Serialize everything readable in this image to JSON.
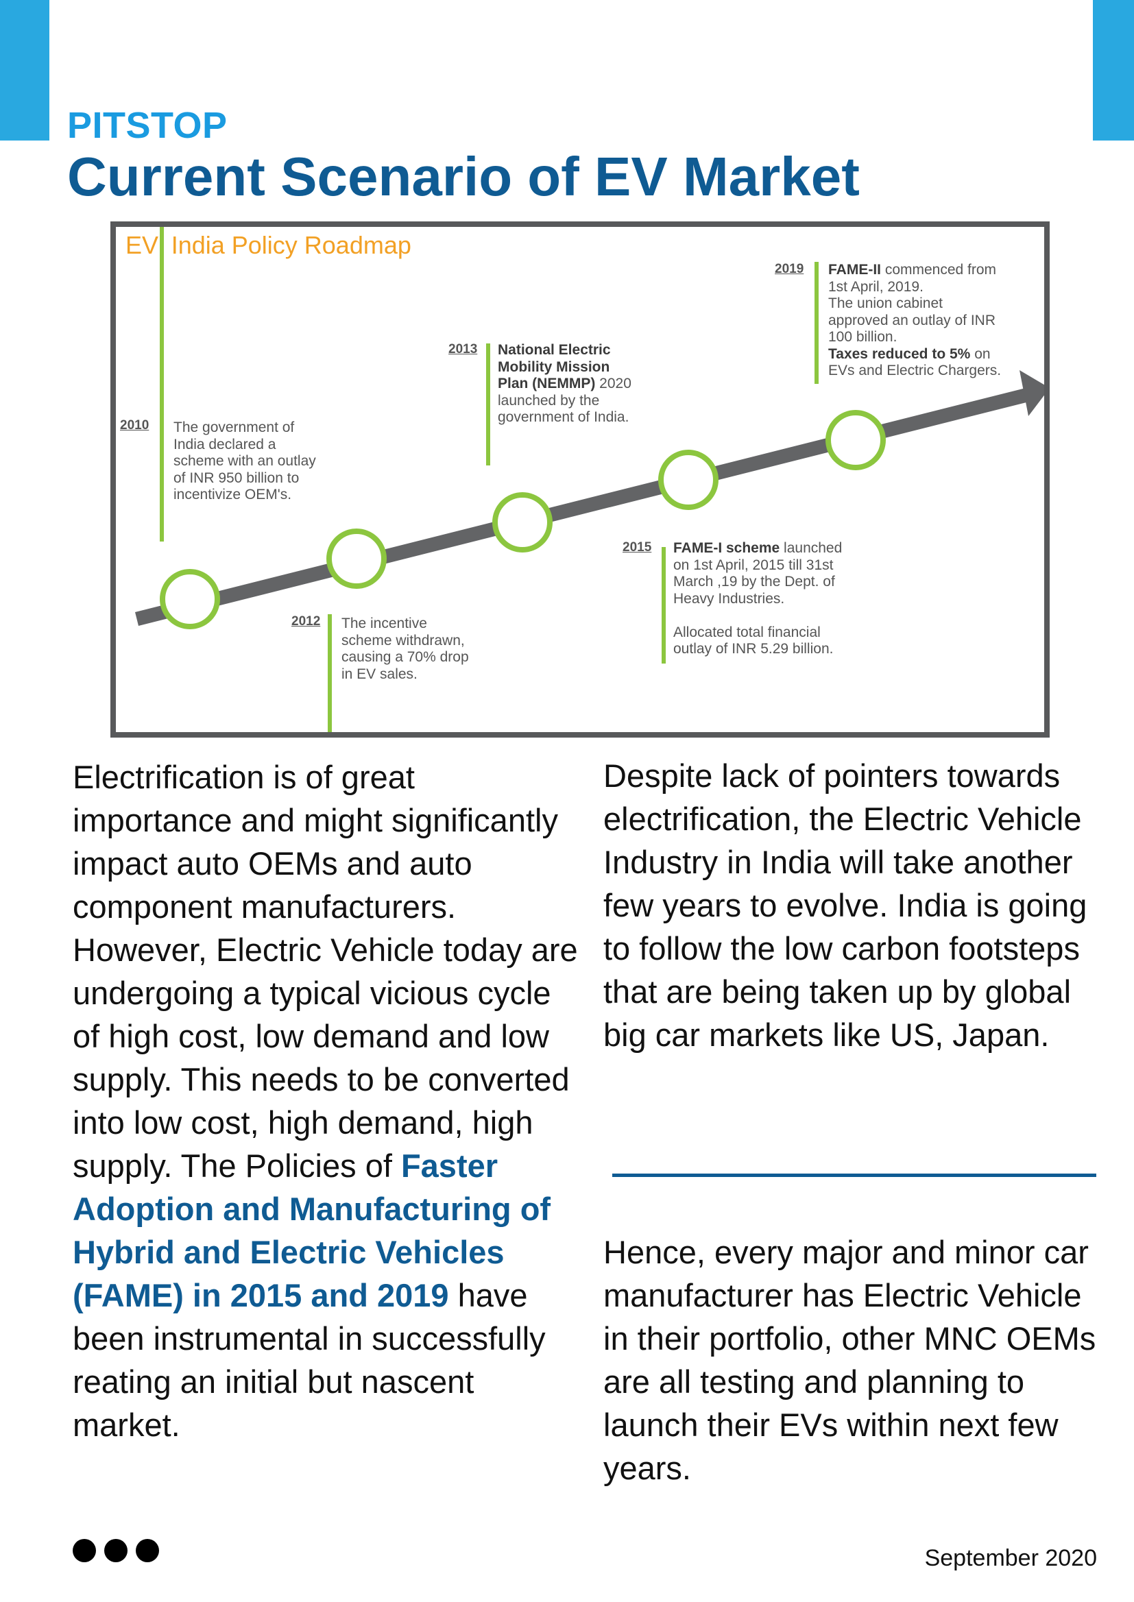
{
  "header": {
    "section": "PITSTOP",
    "title": "Current Scenario of EV Market"
  },
  "colors": {
    "accent_blue": "#29a8e0",
    "title_blue": "#0f5b93",
    "roadmap_orange": "#f2a024",
    "milestone_green": "#8cc63f",
    "arrow_gray": "#636466"
  },
  "roadmap": {
    "title": "EV: India Policy Roadmap",
    "milestones": [
      {
        "year": "2010",
        "lines": [
          {
            "parts": [
              {
                "text": "The government of"
              }
            ]
          },
          {
            "parts": [
              {
                "text": "India declared a"
              }
            ]
          },
          {
            "parts": [
              {
                "text": "scheme with an outlay"
              }
            ]
          },
          {
            "parts": [
              {
                "text": "of INR 950 billion to"
              }
            ]
          },
          {
            "parts": [
              {
                "text": "incentivize OEM's."
              }
            ]
          }
        ]
      },
      {
        "year": "2012",
        "lines": [
          {
            "parts": [
              {
                "text": "The incentive"
              }
            ]
          },
          {
            "parts": [
              {
                "text": "scheme withdrawn,"
              }
            ]
          },
          {
            "parts": [
              {
                "text": "causing a 70% drop"
              }
            ]
          },
          {
            "parts": [
              {
                "text": "in EV sales."
              }
            ]
          }
        ]
      },
      {
        "year": "2013",
        "lines": [
          {
            "parts": [
              {
                "text": "National Electric",
                "bold": true
              }
            ]
          },
          {
            "parts": [
              {
                "text": "Mobility Mission",
                "bold": true
              }
            ]
          },
          {
            "parts": [
              {
                "text": "Plan (NEMMP)",
                "bold": true
              },
              {
                "text": " 2020"
              }
            ]
          },
          {
            "parts": [
              {
                "text": "launched by the"
              }
            ]
          },
          {
            "parts": [
              {
                "text": "government of India."
              }
            ]
          }
        ]
      },
      {
        "year": "2015",
        "lines": [
          {
            "parts": [
              {
                "text": "FAME-I scheme",
                "bold": true
              },
              {
                "text": " launched"
              }
            ]
          },
          {
            "parts": [
              {
                "text": "on 1st April, 2015 till 31st"
              }
            ]
          },
          {
            "parts": [
              {
                "text": "March ,19 by the Dept. of"
              }
            ]
          },
          {
            "parts": [
              {
                "text": "Heavy Industries."
              }
            ]
          },
          {
            "parts": [
              {
                "text": " "
              }
            ]
          },
          {
            "parts": [
              {
                "text": "Allocated total financial"
              }
            ]
          },
          {
            "parts": [
              {
                "text": "outlay of INR 5.29 billion."
              }
            ]
          }
        ]
      },
      {
        "year": "2019",
        "lines": [
          {
            "parts": [
              {
                "text": "FAME-II",
                "bold": true
              },
              {
                "text": " commenced from"
              }
            ]
          },
          {
            "parts": [
              {
                "text": "1st April, 2019."
              }
            ]
          },
          {
            "parts": [
              {
                "text": "The union cabinet"
              }
            ]
          },
          {
            "parts": [
              {
                "text": "approved an outlay of INR"
              }
            ]
          },
          {
            "parts": [
              {
                "text": "100 billion."
              }
            ]
          },
          {
            "parts": [
              {
                "text": "Taxes reduced to 5%",
                "bold": true
              },
              {
                "text": " on"
              }
            ]
          },
          {
            "parts": [
              {
                "text": "EVs and Electric Chargers."
              }
            ]
          }
        ]
      }
    ]
  },
  "body": {
    "left_column": {
      "pre": "Electrification is of great importance and might significantly impact auto OEMs and auto component manufacturers. However, Electric Vehicle today are undergoing a typical vicious cycle of high cost, low demand and low supply. This needs to be converted into low cost, high demand, high supply. The Policies of ",
      "highlight": "Faster Adoption and Manufacturing of Hybrid and Electric Vehicles (FAME) in 2015 and 2019",
      "post": " have been instrumental in successfully reating an initial but nascent market."
    },
    "right_column_top": "Despite lack of pointers towards electrification, the Electric Vehicle Industry in India will take another few years to evolve. India is going to follow the low carbon footsteps that are being taken up by global big car markets like US, Japan.",
    "right_column_bottom": "Hence, every major and minor car manufacturer has Electric Vehicle in their portfolio, other MNC OEMs are all testing and planning to launch their EVs within next few years."
  },
  "footer": {
    "date": "September 2020"
  }
}
